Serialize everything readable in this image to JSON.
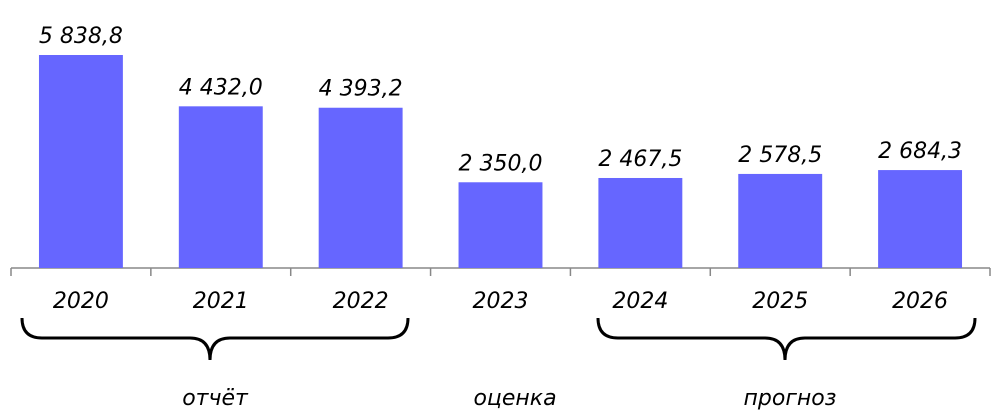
{
  "chart_data": {
    "type": "bar",
    "categories": [
      "2020",
      "2021",
      "2022",
      "2023",
      "2024",
      "2025",
      "2026"
    ],
    "values": [
      5838.8,
      4432.0,
      4393.2,
      2350.0,
      2467.5,
      2578.5,
      2684.3
    ],
    "value_labels": [
      "5 838,8",
      "4 432,0",
      "4 393,2",
      "2 350,0",
      "2 467,5",
      "2 578,5",
      "2 684,3"
    ],
    "color": "#6666ff",
    "annotations": [
      "отчёт",
      "оценка",
      "прогноз"
    ]
  }
}
